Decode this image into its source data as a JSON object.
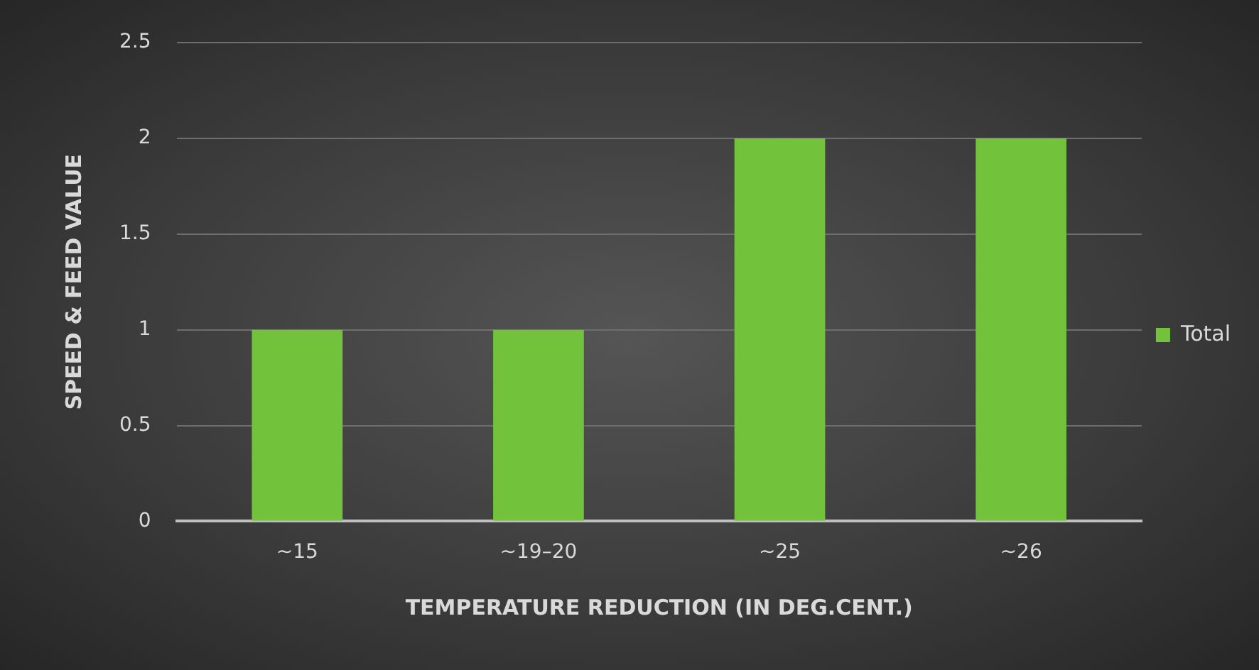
{
  "chart_data": {
    "type": "bar",
    "xlabel": "TEMPERATURE REDUCTION (IN DEG.CENT.)",
    "ylabel": "SPEED & FEED VALUE",
    "categories": [
      "~15",
      "~19–20",
      "~25",
      "~26"
    ],
    "series": [
      {
        "name": "Total",
        "color": "#72c23c",
        "values": [
          1,
          1,
          2,
          2
        ]
      }
    ],
    "ylim": [
      0,
      2.5
    ],
    "yticks": [
      0,
      0.5,
      1,
      1.5,
      2,
      2.5
    ],
    "grid": "y",
    "legend": "right"
  }
}
